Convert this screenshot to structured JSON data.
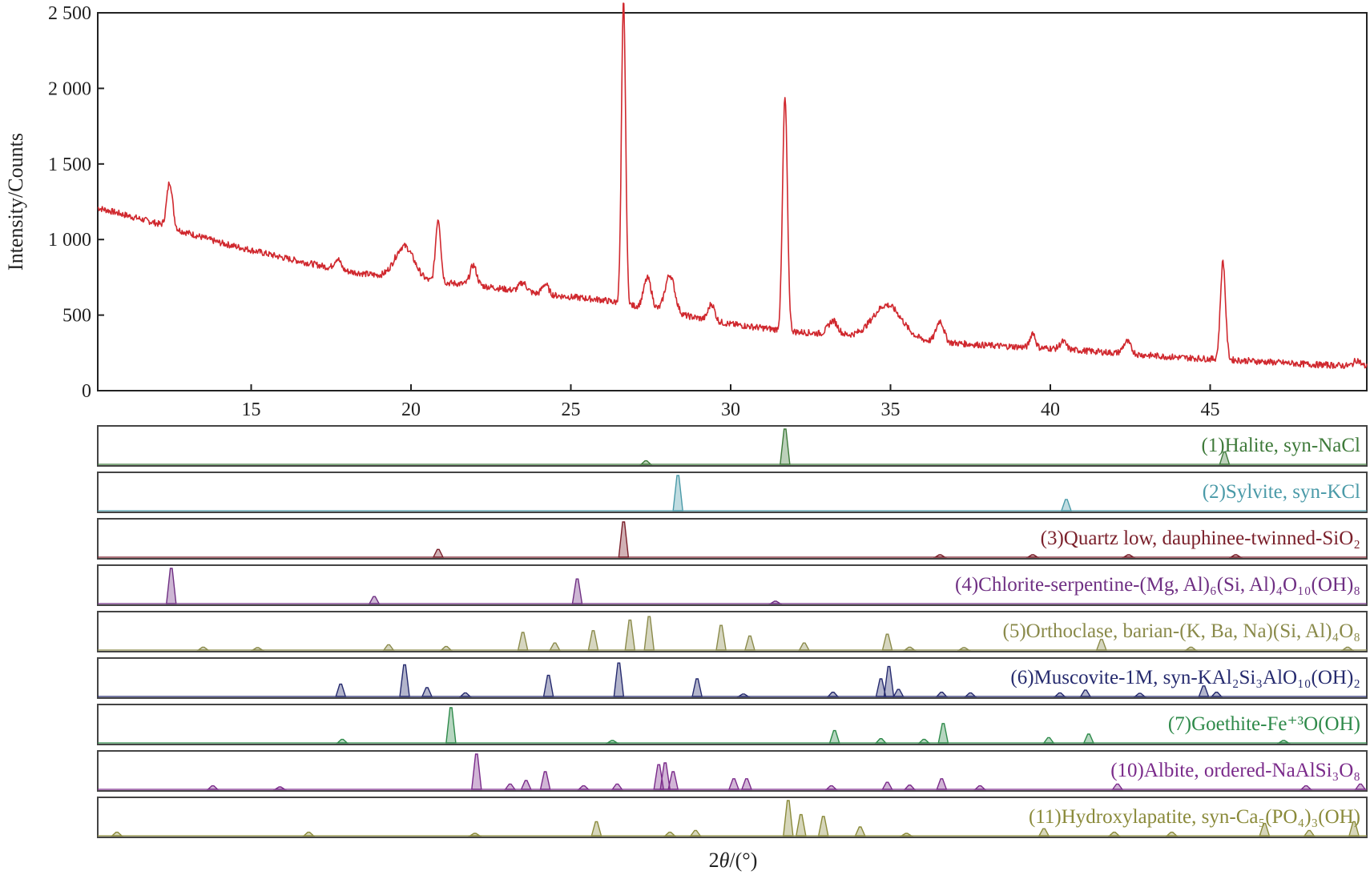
{
  "chart_data": {
    "type": "line",
    "xlabel_prefix": "2",
    "xlabel_symbol": "θ",
    "xlabel_suffix": "/(°)",
    "ylabel": "Intensity/Counts",
    "xlim": [
      10.2,
      49.9
    ],
    "ylim": [
      0,
      2500
    ],
    "x_ticks": [
      15,
      20,
      25,
      30,
      35,
      40,
      45
    ],
    "x_tick_labels": [
      "15",
      "20",
      "25",
      "30",
      "35",
      "40",
      "45"
    ],
    "y_ticks": [
      0,
      500,
      1000,
      1500,
      2000,
      2500
    ],
    "y_tick_labels": [
      "0",
      "500",
      "1 000",
      "1 500",
      "2 000",
      "2 500"
    ],
    "grid": false,
    "series": [
      {
        "color": "#d0282e",
        "background": [
          [
            10.2,
            1210
          ],
          [
            12,
            1110
          ],
          [
            14,
            980
          ],
          [
            16,
            880
          ],
          [
            18,
            790
          ],
          [
            20,
            730
          ],
          [
            22,
            700
          ],
          [
            24,
            640
          ],
          [
            26,
            600
          ],
          [
            28,
            520
          ],
          [
            30,
            440
          ],
          [
            32,
            390
          ],
          [
            34,
            360
          ],
          [
            36,
            330
          ],
          [
            38,
            300
          ],
          [
            40,
            280
          ],
          [
            42,
            250
          ],
          [
            44,
            220
          ],
          [
            46,
            200
          ],
          [
            48,
            175
          ],
          [
            49.9,
            160
          ]
        ],
        "peaks": [
          [
            12.45,
            300,
            0.09
          ],
          [
            17.7,
            70,
            0.1
          ],
          [
            19.8,
            220,
            0.3
          ],
          [
            20.85,
            420,
            0.08
          ],
          [
            21.95,
            130,
            0.1
          ],
          [
            23.5,
            60,
            0.12
          ],
          [
            24.2,
            70,
            0.1
          ],
          [
            26.65,
            2000,
            0.065
          ],
          [
            27.4,
            200,
            0.12
          ],
          [
            28.1,
            250,
            0.15
          ],
          [
            29.4,
            110,
            0.1
          ],
          [
            31.7,
            1540,
            0.075
          ],
          [
            33.2,
            90,
            0.15
          ],
          [
            34.9,
            220,
            0.45
          ],
          [
            36.55,
            140,
            0.12
          ],
          [
            39.45,
            100,
            0.08
          ],
          [
            40.4,
            50,
            0.1
          ],
          [
            42.4,
            80,
            0.12
          ],
          [
            45.4,
            650,
            0.08
          ],
          [
            49.6,
            40,
            0.1
          ]
        ]
      }
    ],
    "reference_patterns": [
      {
        "label": "(1)Halite, syn-NaCl",
        "color": "#3e7a3a",
        "peaks": [
          [
            27.35,
            0.1
          ],
          [
            31.7,
            1.0
          ],
          [
            45.45,
            0.35
          ]
        ]
      },
      {
        "label": "(2)Sylvite, syn-KCl",
        "color": "#4a9aa8",
        "peaks": [
          [
            28.35,
            1.0
          ],
          [
            40.5,
            0.32
          ]
        ]
      },
      {
        "label": "(3)Quartz low, dauphinee-twinned-SiO₂",
        "color": "#7a1f2a",
        "peaks": [
          [
            20.85,
            0.22
          ],
          [
            26.65,
            1.0
          ],
          [
            36.55,
            0.05
          ],
          [
            39.45,
            0.06
          ],
          [
            42.45,
            0.05
          ],
          [
            45.8,
            0.04
          ]
        ]
      },
      {
        "label": "(4)Chlorite-serpentine-(Mg, Al)₆(Si, Al)₄O₁₀(OH)₈",
        "color": "#6f2f83",
        "peaks": [
          [
            12.5,
            1.0
          ],
          [
            18.85,
            0.2
          ],
          [
            25.2,
            0.7
          ],
          [
            31.4,
            0.06
          ]
        ]
      },
      {
        "label": "(5)Orthoclase, barian-(K, Ba, Na)(Si, Al)₄O₈",
        "color": "#8a8a4a",
        "peaks": [
          [
            13.5,
            0.08
          ],
          [
            15.2,
            0.05
          ],
          [
            19.3,
            0.15
          ],
          [
            21.1,
            0.1
          ],
          [
            23.5,
            0.5
          ],
          [
            24.5,
            0.2
          ],
          [
            25.7,
            0.55
          ],
          [
            26.85,
            0.85
          ],
          [
            27.45,
            0.95
          ],
          [
            29.7,
            0.7
          ],
          [
            30.6,
            0.4
          ],
          [
            32.3,
            0.2
          ],
          [
            34.9,
            0.45
          ],
          [
            35.6,
            0.08
          ],
          [
            37.3,
            0.07
          ],
          [
            41.6,
            0.3
          ],
          [
            44.4,
            0.08
          ],
          [
            49.3,
            0.08
          ]
        ]
      },
      {
        "label": "(6)Muscovite-1M, syn-KAl₂Si₃AlO₁₀(OH)₂",
        "color": "#252a6e",
        "peaks": [
          [
            17.8,
            0.35
          ],
          [
            19.8,
            0.9
          ],
          [
            20.5,
            0.25
          ],
          [
            21.7,
            0.1
          ],
          [
            24.3,
            0.6
          ],
          [
            26.5,
            0.95
          ],
          [
            28.95,
            0.5
          ],
          [
            30.4,
            0.07
          ],
          [
            33.2,
            0.12
          ],
          [
            34.7,
            0.5
          ],
          [
            34.95,
            0.85
          ],
          [
            35.25,
            0.2
          ],
          [
            36.6,
            0.12
          ],
          [
            37.5,
            0.1
          ],
          [
            40.3,
            0.1
          ],
          [
            41.1,
            0.18
          ],
          [
            42.8,
            0.09
          ],
          [
            44.8,
            0.3
          ],
          [
            45.2,
            0.12
          ]
        ]
      },
      {
        "label": "(7)Goethite-Fe⁺³O(OH)",
        "color": "#2e8a4a",
        "peaks": [
          [
            17.85,
            0.1
          ],
          [
            21.25,
            1.0
          ],
          [
            26.3,
            0.06
          ],
          [
            33.25,
            0.35
          ],
          [
            34.7,
            0.12
          ],
          [
            36.05,
            0.1
          ],
          [
            36.65,
            0.55
          ],
          [
            39.95,
            0.15
          ],
          [
            41.2,
            0.25
          ],
          [
            47.3,
            0.06
          ]
        ]
      },
      {
        "label": "(10)Albite, ordered-NaAlSi₃O₈",
        "color": "#7a2a8a",
        "peaks": [
          [
            13.8,
            0.1
          ],
          [
            15.9,
            0.05
          ],
          [
            22.05,
            1.0
          ],
          [
            23.1,
            0.15
          ],
          [
            23.6,
            0.25
          ],
          [
            24.2,
            0.5
          ],
          [
            25.4,
            0.1
          ],
          [
            26.45,
            0.15
          ],
          [
            27.75,
            0.7
          ],
          [
            27.95,
            0.75
          ],
          [
            28.2,
            0.5
          ],
          [
            30.1,
            0.3
          ],
          [
            30.5,
            0.3
          ],
          [
            33.15,
            0.1
          ],
          [
            34.9,
            0.2
          ],
          [
            35.6,
            0.12
          ],
          [
            36.6,
            0.3
          ],
          [
            37.8,
            0.1
          ],
          [
            42.1,
            0.15
          ],
          [
            48.0,
            0.1
          ],
          [
            49.7,
            0.15
          ]
        ]
      },
      {
        "label": "(11)Hydroxylapatite, syn-Ca₅(PO₄)₃(OH)",
        "color": "#8a8a3a",
        "peaks": [
          [
            10.8,
            0.1
          ],
          [
            16.8,
            0.1
          ],
          [
            22.0,
            0.05
          ],
          [
            25.8,
            0.4
          ],
          [
            28.1,
            0.1
          ],
          [
            28.9,
            0.15
          ],
          [
            31.8,
            1.0
          ],
          [
            32.2,
            0.6
          ],
          [
            32.9,
            0.55
          ],
          [
            34.05,
            0.25
          ],
          [
            35.5,
            0.06
          ],
          [
            39.8,
            0.2
          ],
          [
            42.0,
            0.1
          ],
          [
            43.8,
            0.1
          ],
          [
            46.7,
            0.35
          ],
          [
            48.1,
            0.15
          ],
          [
            49.5,
            0.4
          ]
        ]
      }
    ]
  }
}
